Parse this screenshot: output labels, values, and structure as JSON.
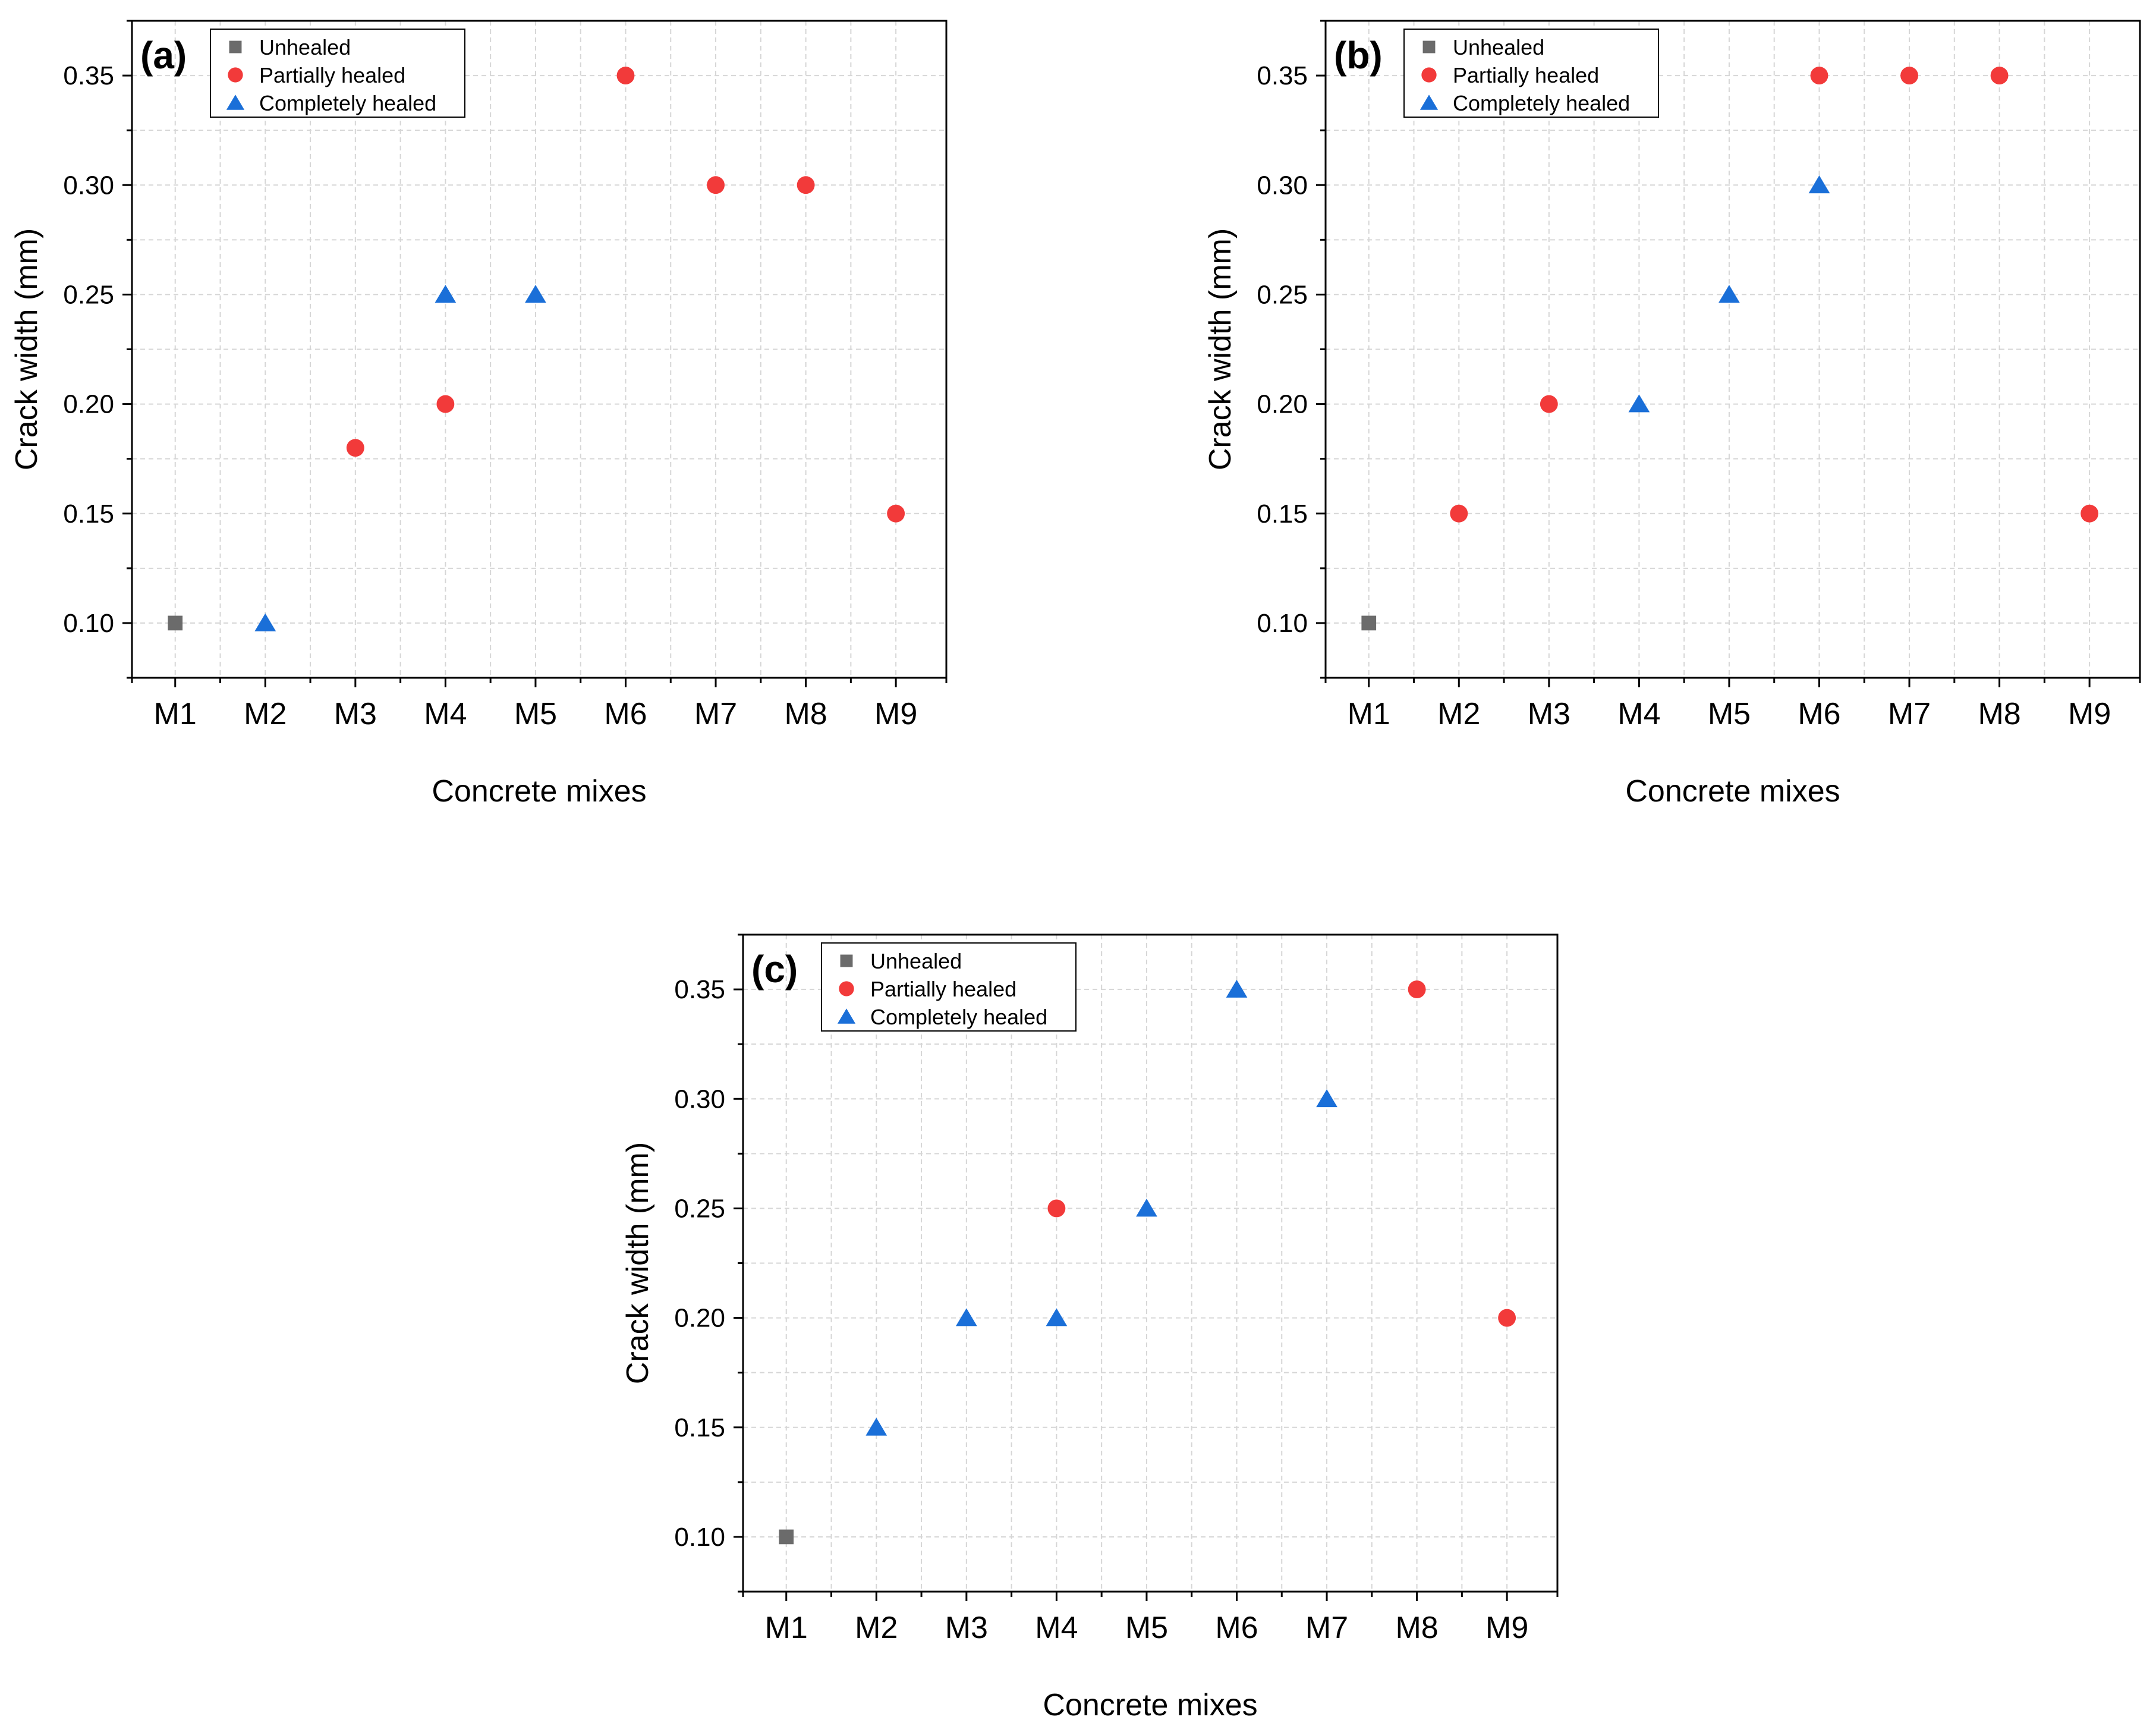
{
  "chart_data": [
    {
      "type": "scatter",
      "panel_label": "(a)",
      "xlabel": "Concrete mixes",
      "ylabel": "Crack width (mm)",
      "categories": [
        "M1",
        "M2",
        "M3",
        "M4",
        "M5",
        "M6",
        "M7",
        "M8",
        "M9"
      ],
      "ylim": [
        0.075,
        0.375
      ],
      "yticks": [
        "0.10",
        "0.15",
        "0.20",
        "0.25",
        "0.30",
        "0.35"
      ],
      "legend_position": "top-left",
      "grid": true,
      "series": [
        {
          "name": "Unhealed",
          "marker": "square",
          "color": "#6b6b6b",
          "points": [
            {
              "x": "M1",
              "y": 0.1
            }
          ]
        },
        {
          "name": "Partially healed",
          "marker": "circle",
          "color": "#f23a3a",
          "points": [
            {
              "x": "M3",
              "y": 0.18
            },
            {
              "x": "M4",
              "y": 0.2
            },
            {
              "x": "M6",
              "y": 0.35
            },
            {
              "x": "M7",
              "y": 0.3
            },
            {
              "x": "M8",
              "y": 0.3
            },
            {
              "x": "M9",
              "y": 0.15
            }
          ]
        },
        {
          "name": "Completely healed",
          "marker": "triangle",
          "color": "#1a6fd8",
          "points": [
            {
              "x": "M2",
              "y": 0.1
            },
            {
              "x": "M4",
              "y": 0.25
            },
            {
              "x": "M5",
              "y": 0.25
            }
          ]
        }
      ]
    },
    {
      "type": "scatter",
      "panel_label": "(b)",
      "xlabel": "Concrete mixes",
      "ylabel": "Crack width (mm)",
      "categories": [
        "M1",
        "M2",
        "M3",
        "M4",
        "M5",
        "M6",
        "M7",
        "M8",
        "M9"
      ],
      "ylim": [
        0.075,
        0.375
      ],
      "yticks": [
        "0.10",
        "0.15",
        "0.20",
        "0.25",
        "0.30",
        "0.35"
      ],
      "legend_position": "top-left",
      "grid": true,
      "series": [
        {
          "name": "Unhealed",
          "marker": "square",
          "color": "#6b6b6b",
          "points": [
            {
              "x": "M1",
              "y": 0.1
            }
          ]
        },
        {
          "name": "Partially healed",
          "marker": "circle",
          "color": "#f23a3a",
          "points": [
            {
              "x": "M2",
              "y": 0.15
            },
            {
              "x": "M3",
              "y": 0.2
            },
            {
              "x": "M6",
              "y": 0.35
            },
            {
              "x": "M7",
              "y": 0.35
            },
            {
              "x": "M8",
              "y": 0.35
            },
            {
              "x": "M9",
              "y": 0.15
            }
          ]
        },
        {
          "name": "Completely healed",
          "marker": "triangle",
          "color": "#1a6fd8",
          "points": [
            {
              "x": "M4",
              "y": 0.2
            },
            {
              "x": "M5",
              "y": 0.25
            },
            {
              "x": "M6",
              "y": 0.3
            }
          ]
        }
      ]
    },
    {
      "type": "scatter",
      "panel_label": "(c)",
      "xlabel": "Concrete mixes",
      "ylabel": "Crack width (mm)",
      "categories": [
        "M1",
        "M2",
        "M3",
        "M4",
        "M5",
        "M6",
        "M7",
        "M8",
        "M9"
      ],
      "ylim": [
        0.075,
        0.375
      ],
      "yticks": [
        "0.10",
        "0.15",
        "0.20",
        "0.25",
        "0.30",
        "0.35"
      ],
      "legend_position": "top-left",
      "grid": true,
      "series": [
        {
          "name": "Unhealed",
          "marker": "square",
          "color": "#6b6b6b",
          "points": [
            {
              "x": "M1",
              "y": 0.1
            }
          ]
        },
        {
          "name": "Partially healed",
          "marker": "circle",
          "color": "#f23a3a",
          "points": [
            {
              "x": "M4",
              "y": 0.25
            },
            {
              "x": "M8",
              "y": 0.35
            },
            {
              "x": "M9",
              "y": 0.2
            }
          ]
        },
        {
          "name": "Completely healed",
          "marker": "triangle",
          "color": "#1a6fd8",
          "points": [
            {
              "x": "M2",
              "y": 0.15
            },
            {
              "x": "M3",
              "y": 0.2
            },
            {
              "x": "M4",
              "y": 0.2
            },
            {
              "x": "M5",
              "y": 0.25
            },
            {
              "x": "M6",
              "y": 0.35
            },
            {
              "x": "M7",
              "y": 0.3
            }
          ]
        }
      ]
    }
  ]
}
